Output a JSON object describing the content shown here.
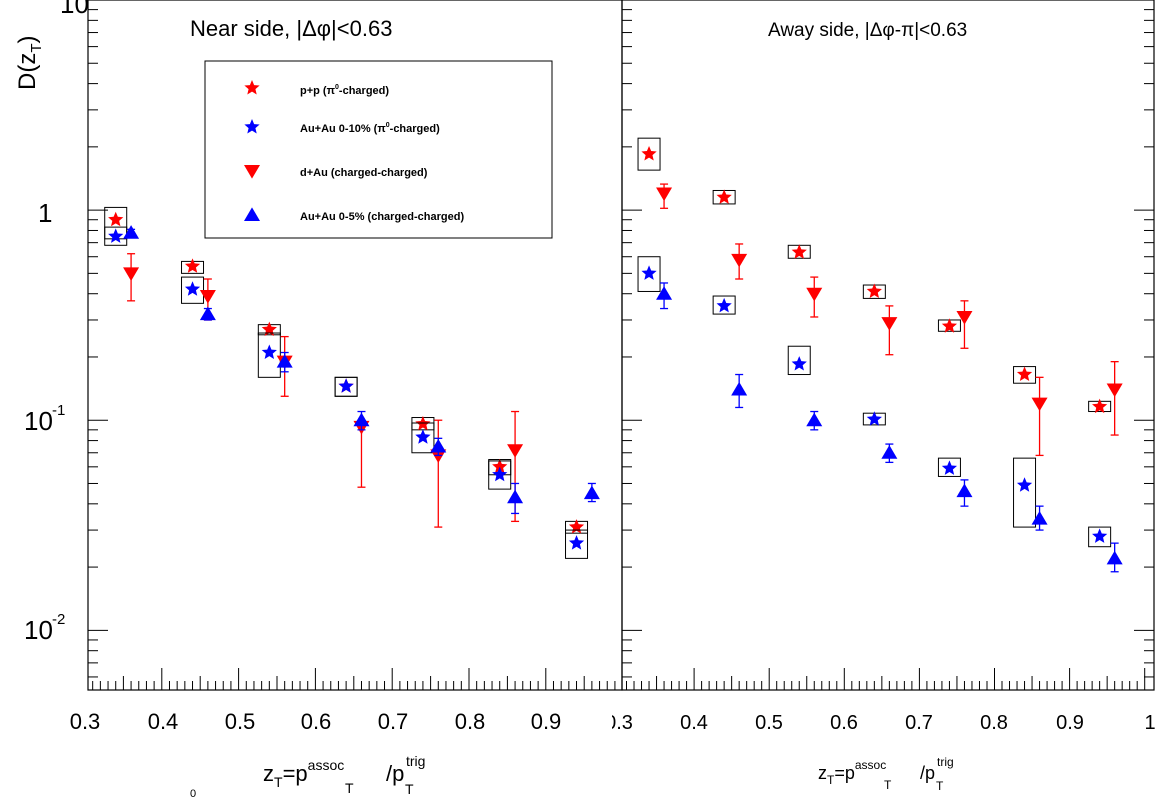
{
  "chart_data": {
    "type": "scatter",
    "y_axis": {
      "label_main": "D(z",
      "label_sub": "T",
      "label_close": ")",
      "scale": "log",
      "ylim": [
        0.0052,
        10
      ],
      "major_ticks": [
        {
          "base": "10",
          "exp": "-2",
          "value": 0.01
        },
        {
          "base": "10",
          "exp": "-1",
          "value": 0.1
        },
        {
          "base": "1",
          "exp": "",
          "value": 1
        },
        {
          "base": "10",
          "exp": "",
          "value": 10
        }
      ]
    },
    "x_axis": {
      "xlim": [
        0.3,
        1.0
      ],
      "tick_labels": [
        "0.3",
        "0.4",
        "0.5",
        "0.6",
        "0.7",
        "0.8",
        "0.9"
      ],
      "away_tick_labels": [
        "0.3",
        "0.4",
        "0.5",
        "0.6",
        "0.7",
        "0.8",
        "0.9",
        "1"
      ],
      "label_parts": {
        "z": "z",
        "T": "T",
        "eq": "=p",
        "assoc": "assoc",
        "slash": "/p",
        "trig": "trig"
      }
    },
    "stray_text": {
      "zero": "0"
    },
    "series": [
      {
        "name": "p+p (π⁰-charged)",
        "legend_main": "p+p (π",
        "legend_sup": "0",
        "legend_tail": "-charged)",
        "color": "#ff0000",
        "marker": "star"
      },
      {
        "name": "Au+Au 0-10% (π⁰-charged)",
        "legend_main": "Au+Au 0-10% (π",
        "legend_sup": "0",
        "legend_tail": "-charged)",
        "color": "#0000ff",
        "marker": "star"
      },
      {
        "name": "d+Au (charged-charged)",
        "legend_main": "d+Au (charged-charged)",
        "legend_sup": "",
        "legend_tail": "",
        "color": "#ff0000",
        "marker": "triangle-down"
      },
      {
        "name": "Au+Au 0-5% (charged-charged)",
        "legend_main": "Au+Au 0-5% (charged-charged)",
        "legend_sup": "",
        "legend_tail": "",
        "color": "#0000ff",
        "marker": "triangle-up"
      }
    ],
    "panels": [
      {
        "id": "near",
        "title": "Near side, |Δφ|<0.63",
        "data": [
          {
            "series": 0,
            "points": [
              {
                "x": 0.34,
                "y": 0.9,
                "sys": [
                  0.73,
                  1.03
                ]
              },
              {
                "x": 0.44,
                "y": 0.54,
                "sys": [
                  0.5,
                  0.57
                ]
              },
              {
                "x": 0.54,
                "y": 0.27,
                "sys": [
                  0.255,
                  0.285
                ]
              },
              {
                "x": 0.64,
                "y": 0.145,
                "sys": [
                  0.13,
                  0.16
                ]
              },
              {
                "x": 0.74,
                "y": 0.096,
                "sys": [
                  0.09,
                  0.103
                ]
              },
              {
                "x": 0.84,
                "y": 0.06,
                "sys": [
                  0.055,
                  0.065
                ]
              },
              {
                "x": 0.94,
                "y": 0.031,
                "sys": [
                  0.029,
                  0.033
                ]
              }
            ]
          },
          {
            "series": 1,
            "points": [
              {
                "x": 0.34,
                "y": 0.75,
                "sys": [
                  0.68,
                  0.83
                ]
              },
              {
                "x": 0.44,
                "y": 0.42,
                "sys": [
                  0.36,
                  0.48
                ]
              },
              {
                "x": 0.54,
                "y": 0.21,
                "sys": [
                  0.16,
                  0.26
                ]
              },
              {
                "x": 0.64,
                "y": 0.145,
                "sys": [
                  0.13,
                  0.16
                ]
              },
              {
                "x": 0.74,
                "y": 0.083,
                "sys": [
                  0.07,
                  0.097
                ]
              },
              {
                "x": 0.84,
                "y": 0.055,
                "sys": [
                  0.047,
                  0.064
                ]
              },
              {
                "x": 0.94,
                "y": 0.026,
                "sys": [
                  0.022,
                  0.03
                ]
              }
            ]
          },
          {
            "series": 2,
            "points": [
              {
                "x": 0.36,
                "y": 0.5,
                "err": [
                  0.37,
                  0.62
                ]
              },
              {
                "x": 0.46,
                "y": 0.39,
                "err": [
                  0.3,
                  0.47
                ]
              },
              {
                "x": 0.56,
                "y": 0.19,
                "err": [
                  0.13,
                  0.25
                ]
              },
              {
                "x": 0.66,
                "y": 0.093,
                "err": [
                  0.048,
                  0.1
                ]
              },
              {
                "x": 0.76,
                "y": 0.068,
                "err": [
                  0.031,
                  0.1
                ]
              },
              {
                "x": 0.86,
                "y": 0.072,
                "err": [
                  0.033,
                  0.11
                ]
              }
            ]
          },
          {
            "series": 3,
            "points": [
              {
                "x": 0.36,
                "y": 0.78,
                "err": [
                  0.75,
                  0.81
                ]
              },
              {
                "x": 0.46,
                "y": 0.32,
                "err": [
                  0.3,
                  0.34
                ]
              },
              {
                "x": 0.56,
                "y": 0.19,
                "err": [
                  0.17,
                  0.21
                ]
              },
              {
                "x": 0.66,
                "y": 0.1,
                "err": [
                  0.09,
                  0.11
                ]
              },
              {
                "x": 0.76,
                "y": 0.075,
                "err": [
                  0.068,
                  0.082
                ]
              },
              {
                "x": 0.86,
                "y": 0.043,
                "err": [
                  0.036,
                  0.05
                ]
              },
              {
                "x": 0.96,
                "y": 0.045,
                "err": [
                  0.041,
                  0.05
                ]
              }
            ]
          }
        ]
      },
      {
        "id": "away",
        "title": "Away side, |Δφ-π|<0.63",
        "data": [
          {
            "series": 0,
            "points": [
              {
                "x": 0.34,
                "y": 1.85,
                "sys": [
                  1.55,
                  2.2
                ]
              },
              {
                "x": 0.44,
                "y": 1.15,
                "sys": [
                  1.07,
                  1.24
                ]
              },
              {
                "x": 0.54,
                "y": 0.63,
                "sys": [
                  0.59,
                  0.68
                ]
              },
              {
                "x": 0.64,
                "y": 0.41,
                "sys": [
                  0.38,
                  0.44
                ]
              },
              {
                "x": 0.74,
                "y": 0.28,
                "sys": [
                  0.265,
                  0.3
                ]
              },
              {
                "x": 0.84,
                "y": 0.165,
                "sys": [
                  0.15,
                  0.18
                ]
              },
              {
                "x": 0.94,
                "y": 0.116,
                "sys": [
                  0.11,
                  0.123
                ]
              }
            ]
          },
          {
            "series": 1,
            "points": [
              {
                "x": 0.34,
                "y": 0.5,
                "sys": [
                  0.41,
                  0.6
                ]
              },
              {
                "x": 0.44,
                "y": 0.35,
                "sys": [
                  0.32,
                  0.39
                ]
              },
              {
                "x": 0.54,
                "y": 0.185,
                "sys": [
                  0.165,
                  0.225
                ]
              },
              {
                "x": 0.64,
                "y": 0.101,
                "sys": [
                  0.095,
                  0.108
                ]
              },
              {
                "x": 0.74,
                "y": 0.059,
                "sys": [
                  0.054,
                  0.066
                ]
              },
              {
                "x": 0.84,
                "y": 0.049,
                "sys": [
                  0.031,
                  0.066
                ]
              },
              {
                "x": 0.94,
                "y": 0.028,
                "sys": [
                  0.025,
                  0.031
                ]
              }
            ]
          },
          {
            "series": 2,
            "points": [
              {
                "x": 0.36,
                "y": 1.2,
                "err": [
                  1.02,
                  1.33
                ]
              },
              {
                "x": 0.46,
                "y": 0.58,
                "err": [
                  0.47,
                  0.69
                ]
              },
              {
                "x": 0.56,
                "y": 0.4,
                "err": [
                  0.31,
                  0.48
                ]
              },
              {
                "x": 0.66,
                "y": 0.29,
                "err": [
                  0.205,
                  0.35
                ]
              },
              {
                "x": 0.76,
                "y": 0.31,
                "err": [
                  0.22,
                  0.37
                ]
              },
              {
                "x": 0.86,
                "y": 0.12,
                "err": [
                  0.068,
                  0.16
                ]
              },
              {
                "x": 0.96,
                "y": 0.14,
                "err": [
                  0.085,
                  0.19
                ]
              }
            ]
          },
          {
            "series": 3,
            "points": [
              {
                "x": 0.36,
                "y": 0.4,
                "err": [
                  0.34,
                  0.45
                ]
              },
              {
                "x": 0.46,
                "y": 0.14,
                "err": [
                  0.115,
                  0.165
                ]
              },
              {
                "x": 0.56,
                "y": 0.1,
                "err": [
                  0.09,
                  0.11
                ]
              },
              {
                "x": 0.66,
                "y": 0.07,
                "err": [
                  0.063,
                  0.077
                ]
              },
              {
                "x": 0.76,
                "y": 0.046,
                "err": [
                  0.039,
                  0.052
                ]
              },
              {
                "x": 0.86,
                "y": 0.034,
                "err": [
                  0.03,
                  0.039
                ]
              },
              {
                "x": 0.96,
                "y": 0.022,
                "err": [
                  0.019,
                  0.026
                ]
              }
            ]
          }
        ]
      }
    ]
  }
}
